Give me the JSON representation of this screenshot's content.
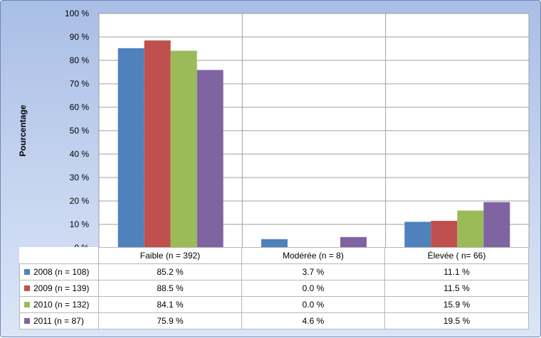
{
  "chart_data": {
    "type": "bar",
    "ylabel": "Pourcentage",
    "ylim": [
      0,
      100
    ],
    "yticks": [
      "0 %",
      "10 %",
      "20 %",
      "30 %",
      "40 %",
      "50 %",
      "60 %",
      "70 %",
      "80 %",
      "90 %",
      "100 %"
    ],
    "categories": [
      "Faible (n = 392)",
      "Modérée (n = 8)",
      "Élevée ( n= 66)"
    ],
    "grid": true,
    "legend": "data-table",
    "series": [
      {
        "name": "2008 (n = 108)",
        "color": "#4f81bd",
        "values": [
          85.2,
          3.7,
          11.1
        ],
        "labels": [
          "85.2 %",
          "3.7 %",
          "11.1 %"
        ]
      },
      {
        "name": "2009 (n = 139)",
        "color": "#c0504d",
        "values": [
          88.5,
          0.0,
          11.5
        ],
        "labels": [
          "88.5 %",
          "0.0 %",
          "11.5 %"
        ]
      },
      {
        "name": "2010 (n = 132)",
        "color": "#9bbb59",
        "values": [
          84.1,
          0.0,
          15.9
        ],
        "labels": [
          "84.1 %",
          "0.0 %",
          "15.9 %"
        ]
      },
      {
        "name": "2011 (n = 87)",
        "color": "#8064a2",
        "values": [
          75.9,
          4.6,
          19.5
        ],
        "labels": [
          "75.9 %",
          "4.6 %",
          "19.5 %"
        ]
      }
    ]
  }
}
